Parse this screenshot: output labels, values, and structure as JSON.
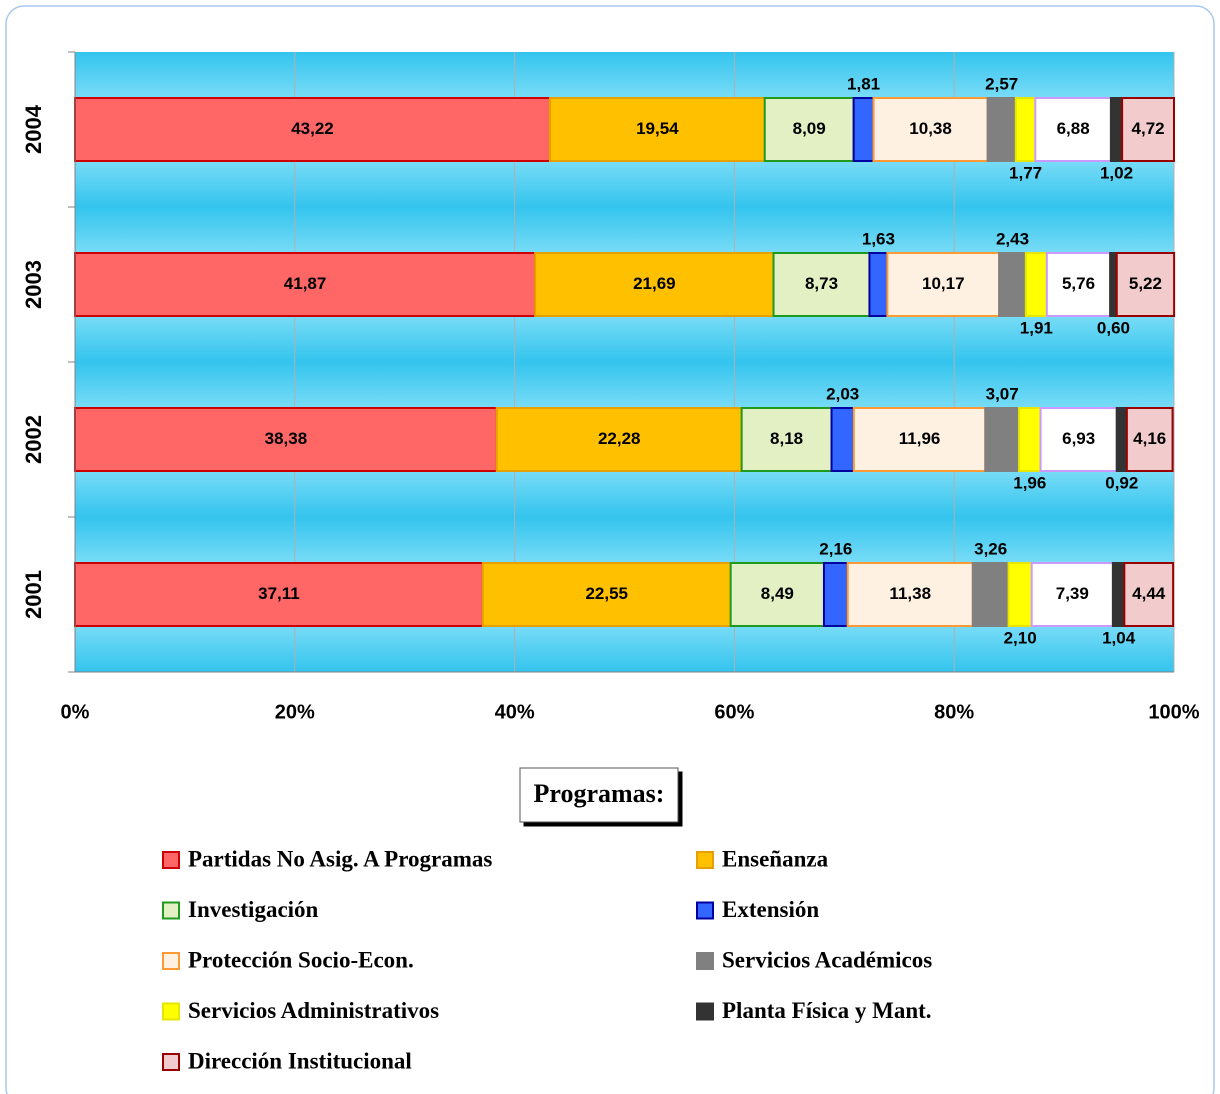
{
  "chart_data": {
    "type": "bar",
    "orientation": "horizontal",
    "stacked": true,
    "categories": [
      "2001",
      "2002",
      "2003",
      "2004"
    ],
    "xlim": [
      0,
      100
    ],
    "xticks": [
      {
        "value": 0,
        "label": "0%"
      },
      {
        "value": 20,
        "label": "20%"
      },
      {
        "value": 40,
        "label": "40%"
      },
      {
        "value": 60,
        "label": "60%"
      },
      {
        "value": 80,
        "label": "80%"
      },
      {
        "value": 100,
        "label": "100%"
      }
    ],
    "grid": true,
    "legend_title": "Programas:",
    "series": [
      {
        "name": "Partidas No Asig. A Programas",
        "color": "#ff6666",
        "border": "#cc0000",
        "label_position": "inside",
        "values": [
          37.11,
          38.38,
          41.87,
          43.22
        ],
        "value_labels": [
          "37,11",
          "38,38",
          "41,87",
          "43,22"
        ]
      },
      {
        "name": "Enseñanza",
        "color": "#ffc000",
        "border": "#e6a000",
        "label_position": "inside",
        "values": [
          22.55,
          22.28,
          21.69,
          19.54
        ],
        "value_labels": [
          "22,55",
          "22,28",
          "21,69",
          "19,54"
        ]
      },
      {
        "name": "Investigación",
        "color": "#e2f0c4",
        "border": "#1f9a1f",
        "label_position": "inside",
        "values": [
          8.49,
          8.18,
          8.73,
          8.09
        ],
        "value_labels": [
          "8,49",
          "8,18",
          "8,73",
          "8,09"
        ]
      },
      {
        "name": "Extensión",
        "color": "#3366ff",
        "border": "#0000a0",
        "label_position": "above",
        "values": [
          2.16,
          2.03,
          1.63,
          1.81
        ],
        "value_labels": [
          "2,16",
          "2,03",
          "1,63",
          "1,81"
        ]
      },
      {
        "name": "Protección Socio-Econ.",
        "color": "#fff1e2",
        "border": "#ff9933",
        "label_position": "inside",
        "values": [
          11.38,
          11.96,
          10.17,
          10.38
        ],
        "value_labels": [
          "11,38",
          "11,96",
          "10,17",
          "10,38"
        ]
      },
      {
        "name": "Servicios Académicos",
        "color": "#808080",
        "border": "#808080",
        "label_position": "above",
        "values": [
          3.26,
          3.07,
          2.43,
          2.57
        ],
        "value_labels": [
          "3,26",
          "3,07",
          "2,43",
          "2,57"
        ]
      },
      {
        "name": "Servicios Administrativos",
        "color": "#ffff00",
        "border": "#e6e600",
        "label_position": "below",
        "values": [
          2.1,
          1.96,
          1.91,
          1.77
        ],
        "value_labels": [
          "2,10",
          "1,96",
          "1,91",
          "1,77"
        ]
      },
      {
        "color": "#ffffff",
        "border": "#cc99ff",
        "label_position": "inside",
        "values": [
          7.39,
          6.93,
          5.76,
          6.88
        ],
        "value_labels": [
          "7,39",
          "6,93",
          "5,76",
          "6,88"
        ]
      },
      {
        "name": "Planta Física y Mant.",
        "color": "#333333",
        "border": "#333333",
        "label_position": "below",
        "values": [
          1.04,
          0.92,
          0.6,
          1.02
        ],
        "value_labels": [
          "1,04",
          "0,92",
          "0,60",
          "1,02"
        ]
      },
      {
        "name": "Dirección Institucional",
        "color": "#f2cccc",
        "border": "#990000",
        "label_position": "inside",
        "values": [
          4.44,
          4.16,
          5.22,
          4.72
        ],
        "value_labels": [
          "4,44",
          "4,16",
          "5,22",
          "4,72"
        ]
      }
    ]
  }
}
